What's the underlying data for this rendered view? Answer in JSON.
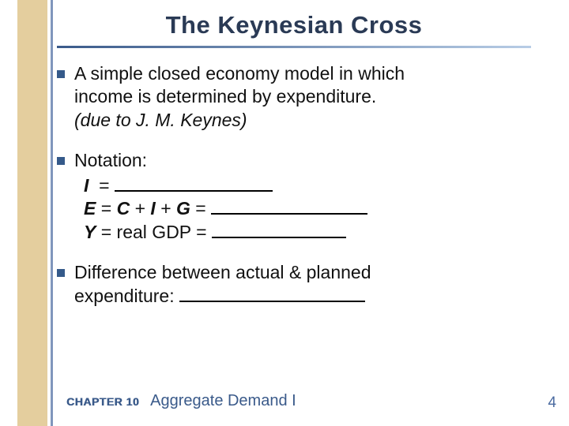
{
  "colors": {
    "gold_band": "#d6b36a",
    "blue_line": "#4a6aa0",
    "title_dark": "#2a3a55",
    "title_light": "#6a7aa0",
    "bullet": "#355a8a",
    "footer": "#3a5a8a"
  },
  "title": "The Keynesian Cross",
  "bullets": {
    "b1_line1": "A simple closed economy model in which",
    "b1_line2": "income is determined by expenditure.",
    "b1_line3": "(due to J. M. Keynes)",
    "b2_label": "Notation:",
    "notation": {
      "I_var": "I",
      "I_eq": " = ",
      "E_var": "E",
      "E_eq": " = ",
      "C_var": "C",
      "plus1": " + ",
      "I2_var": "I",
      "plus2": " + ",
      "G_var": "G",
      "eq2": " = ",
      "Y_var": "Y",
      "Y_eq": " = real GDP = "
    },
    "b3_line1": "Difference between actual & planned",
    "b3_line2_pre": "expenditure:  "
  },
  "blanks": {
    "I_width": 200,
    "E_width": 198,
    "Y_width": 170,
    "diff_width": 235
  },
  "footer": {
    "chapter": "CHAPTER 10",
    "name": "Aggregate Demand I",
    "page": "4"
  }
}
